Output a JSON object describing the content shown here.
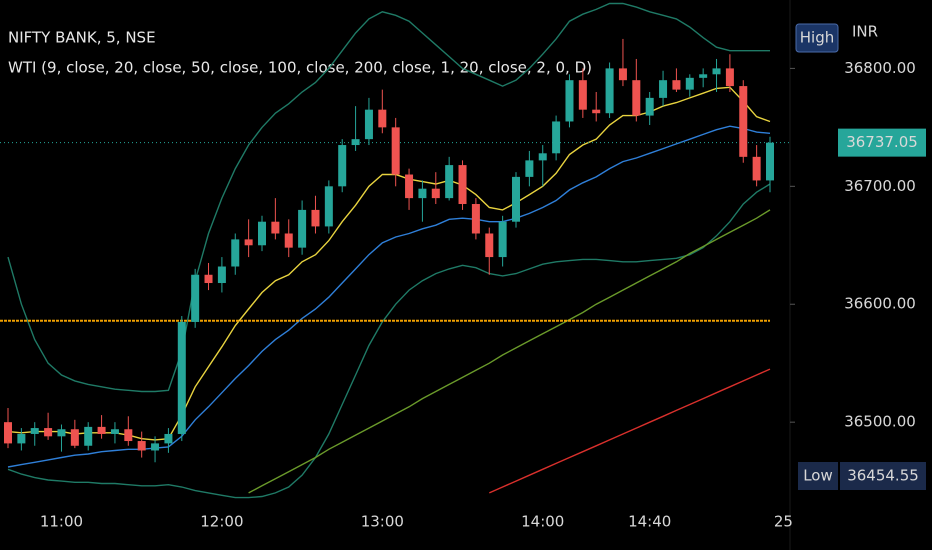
{
  "chart_data": {
    "type": "candlestick",
    "title": "NIFTY BANK, 5, NSE",
    "subtitle": "WTI (9, close, 20, close, 50, close, 100, close, 200, close, 1, 20, close, 2, 0, D)",
    "currency": "INR",
    "categories": [
      null,
      null,
      null,
      null,
      "11:00",
      null,
      null,
      null,
      null,
      null,
      null,
      null,
      null,
      null,
      null,
      null,
      "12:00",
      null,
      null,
      null,
      null,
      null,
      null,
      null,
      null,
      null,
      null,
      null,
      "13:00",
      null,
      null,
      null,
      null,
      null,
      null,
      null,
      null,
      null,
      null,
      null,
      "14:00",
      null,
      null,
      null,
      null,
      null,
      null,
      null,
      "14:40",
      null,
      null,
      null,
      null,
      null,
      null,
      null,
      null,
      null
    ],
    "next_day_label": "25",
    "open": [
      36500,
      36482,
      36490,
      36495,
      36488,
      36494,
      36480,
      36496,
      36490,
      36494,
      36484,
      36476,
      36482,
      36490,
      36585,
      36625,
      36618,
      36632,
      36655,
      36650,
      36670,
      36660,
      36648,
      36680,
      36666,
      36700,
      36735,
      36740,
      36765,
      36750,
      36710,
      36690,
      36698,
      36690,
      36718,
      36685,
      36660,
      36640,
      36670,
      36708,
      36722,
      36728,
      36755,
      36790,
      36765,
      36762,
      36800,
      36790,
      36760,
      36775,
      36790,
      36782,
      36792,
      36795,
      36800,
      36785,
      36725,
      36705
    ],
    "high": [
      36512,
      36495,
      36500,
      36508,
      36498,
      36502,
      36500,
      36506,
      36500,
      36505,
      36492,
      36488,
      36495,
      36590,
      36630,
      36635,
      36640,
      36660,
      36672,
      36675,
      36690,
      36672,
      36688,
      36692,
      36705,
      36740,
      36768,
      36775,
      36782,
      36758,
      36715,
      36705,
      36712,
      36725,
      36722,
      36690,
      36665,
      36675,
      36712,
      36730,
      36735,
      36760,
      36795,
      36800,
      36780,
      36805,
      36825,
      36808,
      36780,
      36798,
      36800,
      36795,
      36800,
      36808,
      36812,
      36790,
      36735,
      36742
    ],
    "low": [
      36478,
      36476,
      36480,
      36485,
      36475,
      36478,
      36476,
      36486,
      36482,
      36480,
      36470,
      36466,
      36474,
      36484,
      36580,
      36612,
      36610,
      36625,
      36640,
      36645,
      36655,
      36640,
      36642,
      36660,
      36660,
      36695,
      36730,
      36735,
      36745,
      36700,
      36680,
      36670,
      36685,
      36688,
      36680,
      36655,
      36625,
      36632,
      36665,
      36700,
      36700,
      36722,
      36750,
      36758,
      36755,
      36758,
      36785,
      36755,
      36752,
      36768,
      36780,
      36776,
      36784,
      36780,
      36780,
      36720,
      36700,
      36695
    ],
    "close": [
      36482,
      36490,
      36495,
      36488,
      36494,
      36480,
      36496,
      36490,
      36494,
      36484,
      36476,
      36482,
      36490,
      36585,
      36625,
      36618,
      36632,
      36655,
      36650,
      36670,
      36660,
      36648,
      36680,
      36666,
      36700,
      36735,
      36740,
      36765,
      36750,
      36710,
      36690,
      36698,
      36690,
      36718,
      36685,
      36660,
      36640,
      36670,
      36708,
      36722,
      36728,
      36755,
      36790,
      36765,
      36762,
      36800,
      36790,
      36760,
      36775,
      36790,
      36782,
      36792,
      36795,
      36800,
      36785,
      36725,
      36705,
      36737
    ],
    "up_color": "#26a69a",
    "down_color": "#ef5350",
    "overlays": [
      {
        "color": "#1f7a66",
        "values": [
          36640,
          36600,
          36570,
          36550,
          36540,
          36535,
          36532,
          36530,
          36528,
          36527,
          36526,
          36526,
          36527,
          36560,
          36620,
          36660,
          36690,
          36715,
          36735,
          36750,
          36762,
          36770,
          36780,
          36788,
          36800,
          36815,
          36830,
          36842,
          36848,
          36845,
          36840,
          36830,
          36820,
          36810,
          36800,
          36795,
          36790,
          36785,
          36790,
          36800,
          36812,
          36825,
          36840,
          36846,
          36850,
          36855,
          36855,
          36852,
          36848,
          36845,
          36842,
          36835,
          36826,
          36818,
          36815,
          36815,
          36815,
          36815
        ]
      },
      {
        "color": "#1f7a66",
        "values": [
          36460,
          36456,
          36453,
          36451,
          36450,
          36449,
          36449,
          36448,
          36448,
          36447,
          36446,
          36446,
          36447,
          36445,
          36442,
          36440,
          36438,
          36436,
          36436,
          36437,
          36440,
          36445,
          36455,
          36470,
          36490,
          36515,
          36540,
          36565,
          36585,
          36600,
          36612,
          36620,
          36626,
          36630,
          36633,
          36631,
          36626,
          36624,
          36626,
          36630,
          36634,
          36636,
          36637,
          36638,
          36638,
          36637,
          36636,
          36636,
          36637,
          36638,
          36639,
          36642,
          36648,
          36658,
          36670,
          36685,
          36695,
          36702
        ]
      },
      {
        "color": "#6a9a2a",
        "values": [
          null,
          null,
          null,
          null,
          null,
          null,
          null,
          null,
          null,
          null,
          null,
          null,
          null,
          null,
          null,
          null,
          null,
          null,
          36440,
          36446,
          36452,
          36458,
          36464,
          36470,
          36477,
          36483,
          36489,
          36495,
          36501,
          36507,
          36513,
          36520,
          36526,
          36532,
          36538,
          36544,
          36550,
          36557,
          36563,
          36569,
          36575,
          36581,
          36587,
          36593,
          36600,
          36606,
          36612,
          36618,
          36624,
          36630,
          36636,
          36643,
          36649,
          36655,
          36661,
          36667,
          36673,
          36680
        ]
      },
      {
        "color": "#d9302c",
        "values": [
          null,
          null,
          null,
          null,
          null,
          null,
          null,
          null,
          null,
          null,
          null,
          null,
          null,
          null,
          null,
          null,
          null,
          null,
          null,
          null,
          null,
          null,
          null,
          null,
          null,
          null,
          null,
          null,
          null,
          null,
          null,
          null,
          null,
          null,
          null,
          null,
          36440,
          36445,
          36450,
          36455,
          36460,
          36465,
          36470,
          36475,
          36480,
          36485,
          36490,
          36495,
          36500,
          36505,
          36510,
          36515,
          36520,
          36525,
          36530,
          36535,
          36540,
          36545
        ]
      },
      {
        "color": "#2f7fd8",
        "values": [
          36462,
          36464,
          36466,
          36468,
          36470,
          36472,
          36473,
          36475,
          36476,
          36477,
          36477,
          36478,
          36479,
          36488,
          36502,
          36513,
          36525,
          36537,
          36548,
          36560,
          36570,
          36578,
          36588,
          36596,
          36606,
          36618,
          36630,
          36642,
          36652,
          36657,
          36660,
          36664,
          36667,
          36672,
          36673,
          36672,
          36670,
          36670,
          36673,
          36677,
          36682,
          36688,
          36697,
          36703,
          36708,
          36715,
          36721,
          36724,
          36728,
          36732,
          36736,
          36740,
          36744,
          36748,
          36751,
          36749,
          36746,
          36745
        ]
      },
      {
        "color": "#e8d33f",
        "values": [
          36492,
          36491,
          36492,
          36492,
          36492,
          36490,
          36491,
          36491,
          36491,
          36489,
          36486,
          36485,
          36486,
          36506,
          36530,
          36547,
          36564,
          36582,
          36596,
          36610,
          36620,
          36625,
          36636,
          36642,
          36654,
          36670,
          36684,
          36700,
          36710,
          36710,
          36706,
          36704,
          36702,
          36705,
          36701,
          36693,
          36682,
          36680,
          36686,
          36693,
          36700,
          36711,
          36727,
          36735,
          36740,
          36752,
          36760,
          36760,
          36763,
          36768,
          36771,
          36775,
          36779,
          36783,
          36784,
          36772,
          36759,
          36755
        ]
      }
    ],
    "level_line": {
      "value": 36586,
      "color": "#f0a000"
    },
    "ylim": [
      36434,
      36858
    ],
    "yticks": [
      {
        "value": 36500,
        "label": "36500.00"
      },
      {
        "value": 36600,
        "label": "36600.00"
      },
      {
        "value": 36700,
        "label": "36700.00"
      },
      {
        "value": 36800,
        "label": "36800.00"
      }
    ],
    "last_price": {
      "value": 36737.05,
      "label": "36737.05",
      "color": "#26a69a"
    },
    "high_marker": {
      "label": "High"
    },
    "low_marker": {
      "label": "Low",
      "value": 36454.55,
      "price_label": "36454.55"
    }
  }
}
